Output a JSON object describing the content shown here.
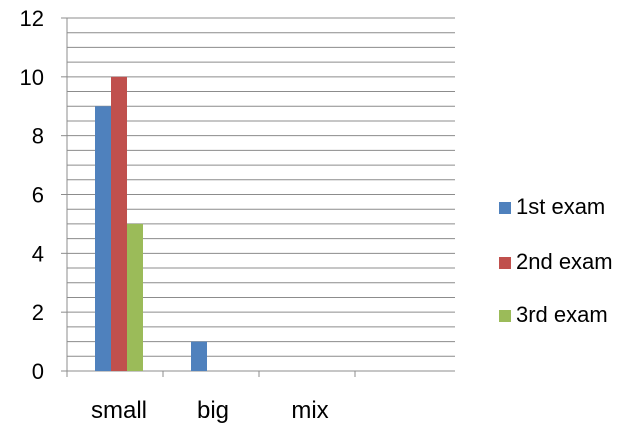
{
  "chart_data": {
    "type": "bar",
    "categories": [
      "small",
      "big",
      "mix"
    ],
    "series": [
      {
        "name": "1st exam",
        "values": [
          9,
          1,
          0
        ],
        "color": "#4F81BD"
      },
      {
        "name": "2nd exam",
        "values": [
          10,
          0,
          0
        ],
        "color": "#C0504D"
      },
      {
        "name": "3rd exam",
        "values": [
          5,
          0,
          0
        ],
        "color": "#9BBB59"
      }
    ],
    "yticks": [
      "0",
      "2",
      "4",
      "6",
      "8",
      "10",
      "12"
    ],
    "ylim": [
      0,
      12
    ],
    "minor_grid_step": 0.5,
    "grid": true,
    "legend_position": "right"
  }
}
